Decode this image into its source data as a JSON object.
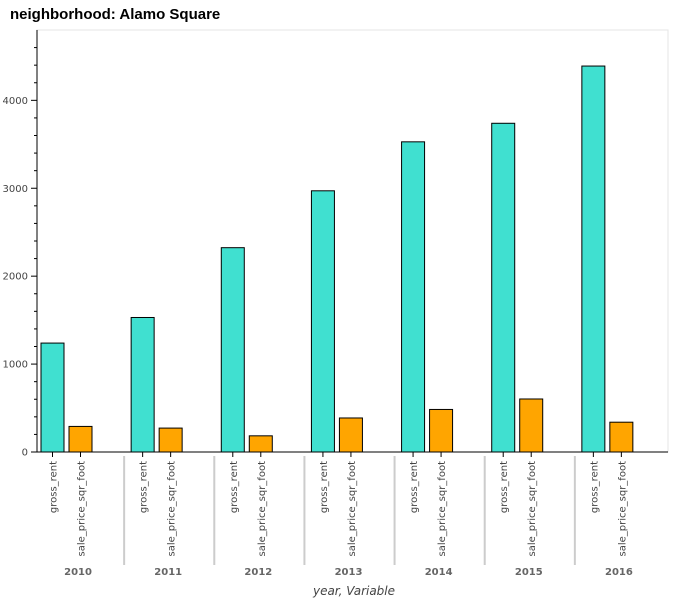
{
  "chart_data": {
    "type": "bar",
    "title": "neighborhood: Alamo Square",
    "xlabel": "year, Variable",
    "ylabel": "",
    "ylim": [
      0,
      4800
    ],
    "yticks": [
      0,
      1000,
      2000,
      3000,
      4000
    ],
    "categories": [
      "2010",
      "2011",
      "2012",
      "2013",
      "2014",
      "2015",
      "2016"
    ],
    "series": [
      {
        "name": "gross_rent",
        "color": "#40e0d0",
        "values": [
          1239,
          1530,
          2324,
          2971,
          3528,
          3739,
          4390
        ]
      },
      {
        "name": "sale_price_sqr_foot",
        "color": "#ffa500",
        "values": [
          291,
          272,
          184,
          387,
          484,
          603,
          339
        ]
      }
    ],
    "grid": false
  }
}
